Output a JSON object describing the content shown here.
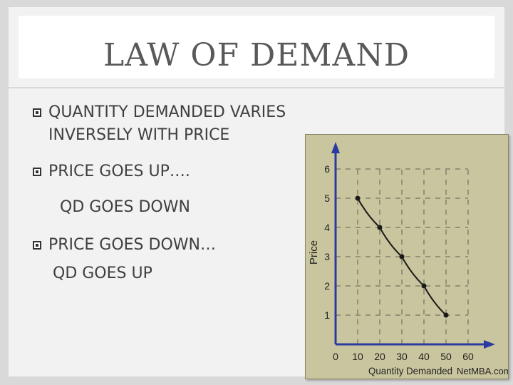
{
  "slide": {
    "title": "LAW OF DEMAND",
    "bullets": [
      {
        "lines": [
          "QUANTITY DEMANDED VARIES",
          "INVERSELY WITH PRICE"
        ]
      },
      {
        "lines": [
          "PRICE GOES UP….",
          "QD GOES DOWN"
        ]
      },
      {
        "lines": [
          "PRICE GOES DOWN…",
          "QD GOES UP"
        ]
      }
    ]
  },
  "chart_data": {
    "type": "line",
    "title": "",
    "xlabel": "Quantity Demanded",
    "ylabel": "Price",
    "x_ticks": [
      "0",
      "10",
      "20",
      "30",
      "40",
      "50",
      "60"
    ],
    "y_ticks": [
      "1",
      "2",
      "3",
      "4",
      "5",
      "6"
    ],
    "xlim": [
      0,
      60
    ],
    "ylim": [
      0,
      6
    ],
    "grid": true,
    "series": [
      {
        "x": [
          10,
          20,
          30,
          40,
          50
        ],
        "y": [
          5,
          4,
          3,
          2,
          1
        ]
      }
    ],
    "watermark": "NetMBA.com",
    "colors": {
      "panel": "#c9c59e",
      "line": "#1a1a1a",
      "axis": "#2d3aa0",
      "grid": "#333333"
    }
  }
}
